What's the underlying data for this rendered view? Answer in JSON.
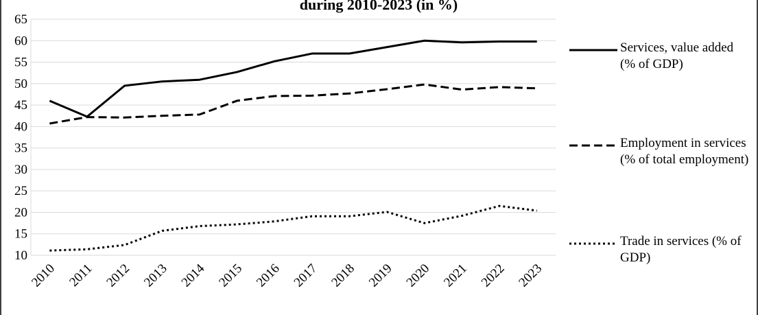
{
  "chart_data": {
    "type": "line",
    "title": "during 2010-2023 (in %)",
    "categories": [
      "2010",
      "2011",
      "2012",
      "2013",
      "2014",
      "2015",
      "2016",
      "2017",
      "2018",
      "2019",
      "2020",
      "2021",
      "2022",
      "2023"
    ],
    "series": [
      {
        "name": "Services, value added (% of GDP)",
        "color": "#000000",
        "dash": "solid",
        "values": [
          46,
          42.3,
          49.5,
          50.5,
          50.9,
          52.7,
          55.2,
          57,
          57,
          58.5,
          60,
          59.6,
          59.8,
          59.8
        ]
      },
      {
        "name": "Employment in services (% of total employment)",
        "color": "#000000",
        "dash": "dashed",
        "values": [
          40.7,
          42.2,
          42.1,
          42.5,
          42.8,
          46,
          47.1,
          47.2,
          47.7,
          48.7,
          49.8,
          48.6,
          49.2,
          48.9
        ]
      },
      {
        "name": "Trade in services (% of GDP)",
        "color": "#000000",
        "dash": "dotted",
        "values": [
          11.1,
          11.4,
          12.4,
          15.7,
          16.8,
          17.2,
          17.9,
          19.1,
          19.1,
          20.1,
          17.5,
          19.2,
          21.5,
          20.4
        ]
      }
    ],
    "ylim": [
      10,
      65
    ],
    "yticks": [
      10,
      15,
      20,
      25,
      30,
      35,
      40,
      45,
      50,
      55,
      60,
      65
    ],
    "grid": true,
    "legend": "right"
  }
}
